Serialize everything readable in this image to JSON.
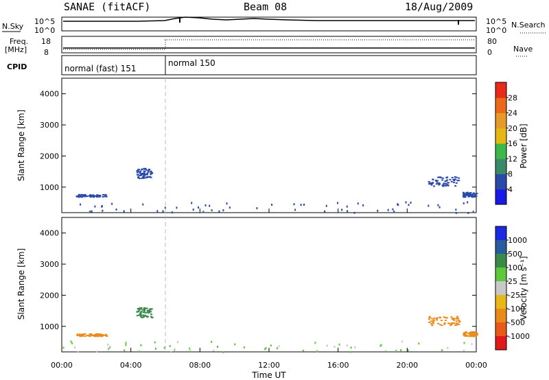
{
  "header": {
    "station": "SANAE (fitACF)",
    "beam": "Beam 08",
    "date": "18/Aug/2009"
  },
  "panels": {
    "nsky": {
      "label": "N.Sky",
      "ytick_top": "10^5",
      "ytick_bottom": "10^0"
    },
    "nsearch": {
      "label": "N.Search",
      "ytick_top": "10^5",
      "ytick_bottom": "10^0"
    },
    "freq": {
      "label_line1": "Freq.",
      "label_line2": "[MHz]",
      "ytick_top": "18",
      "ytick_bottom": "8"
    },
    "nave": {
      "label": "Nave",
      "ytick_top": "80",
      "ytick_bottom": "0"
    },
    "cpid": {
      "label": "CPID",
      "modes": [
        {
          "name": "normal (fast) 151",
          "start": 0,
          "end": 6
        },
        {
          "name": "normal 150",
          "start": 6,
          "end": 24
        }
      ]
    }
  },
  "axes": {
    "slant_label": "Slant Range [km]",
    "y_ticks": [
      "1000",
      "2000",
      "3000",
      "4000"
    ],
    "x_ticks": [
      "00:00",
      "04:00",
      "08:00",
      "12:00",
      "16:00",
      "20:00",
      "00:00"
    ],
    "xlabel": "Time UT"
  },
  "colorbars": {
    "power": {
      "label": "Power [dB]",
      "ticks": [
        "4",
        "8",
        "12",
        "16",
        "20",
        "24",
        "28"
      ],
      "colors": [
        "#1a1ae6",
        "#2a4aa8",
        "#3a8a6a",
        "#3cb84a",
        "#e6b814",
        "#e89a28",
        "#ea6a1a",
        "#e82a18"
      ]
    },
    "velocity": {
      "label": "Velocity [m s⁻¹]",
      "ticks": [
        "1000",
        "500",
        "100",
        "25",
        "-25",
        "-100",
        "-500",
        "-1000"
      ],
      "colors": [
        "#1a2ae0",
        "#2a5aa0",
        "#3a8a4a",
        "#5cc83a",
        "#c8c8c8",
        "#e8b818",
        "#ea8a1a",
        "#e85a1a",
        "#e01a1a"
      ]
    }
  },
  "chart_data": {
    "type": "scatter",
    "x_unit": "hours UT",
    "y_unit": "km",
    "xlim": [
      0,
      24
    ],
    "ylim": [
      180,
      4500
    ],
    "power_clusters": [
      {
        "t0": 0.8,
        "t1": 2.6,
        "r0": 700,
        "r1": 780,
        "color": "#2a4aa8"
      },
      {
        "t0": 4.3,
        "t1": 5.2,
        "r0": 1300,
        "r1": 1620,
        "color": "#2a4aa8"
      },
      {
        "t0": 21.2,
        "t1": 23.0,
        "r0": 1050,
        "r1": 1350,
        "color": "#2a4aa8"
      },
      {
        "t0": 23.2,
        "t1": 24.0,
        "r0": 700,
        "r1": 850,
        "color": "#2a4aa8"
      }
    ],
    "velocity_clusters": [
      {
        "t0": 0.8,
        "t1": 2.6,
        "r0": 700,
        "r1": 780,
        "color": "#ea8a1a"
      },
      {
        "t0": 4.3,
        "t1": 5.2,
        "r0": 1300,
        "r1": 1620,
        "color": "#3a8a4a"
      },
      {
        "t0": 21.2,
        "t1": 23.0,
        "r0": 1050,
        "r1": 1350,
        "color": "#ea8a1a"
      },
      {
        "t0": 23.2,
        "t1": 24.0,
        "r0": 700,
        "r1": 850,
        "color": "#ea8a1a"
      }
    ],
    "mode_change_hour": 6
  }
}
